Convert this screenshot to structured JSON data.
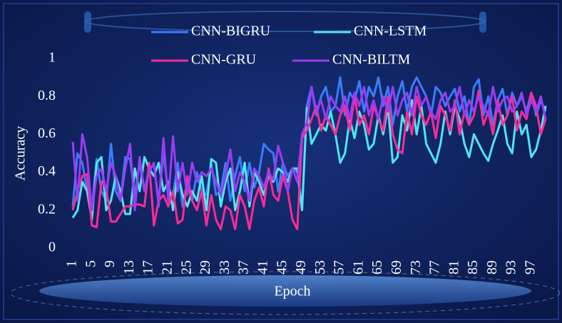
{
  "chart_data": {
    "type": "line",
    "y_label": "Accuracy",
    "x_label": "Epoch",
    "xlim": [
      1,
      100
    ],
    "ylim": [
      0,
      1
    ],
    "xticks": [
      1,
      5,
      9,
      13,
      17,
      21,
      25,
      29,
      33,
      37,
      41,
      45,
      49,
      53,
      57,
      61,
      65,
      69,
      73,
      77,
      81,
      85,
      89,
      93,
      97
    ],
    "yticks": [
      0,
      0.2,
      0.4,
      0.6,
      0.8,
      1
    ],
    "x": [
      1,
      2,
      3,
      4,
      5,
      6,
      7,
      8,
      9,
      10,
      11,
      12,
      13,
      14,
      15,
      16,
      17,
      18,
      19,
      20,
      21,
      22,
      23,
      24,
      25,
      26,
      27,
      28,
      29,
      30,
      31,
      32,
      33,
      34,
      35,
      36,
      37,
      38,
      39,
      40,
      41,
      42,
      43,
      44,
      45,
      46,
      47,
      48,
      49,
      50,
      51,
      52,
      53,
      54,
      55,
      56,
      57,
      58,
      59,
      60,
      61,
      62,
      63,
      64,
      65,
      66,
      67,
      68,
      69,
      70,
      71,
      72,
      73,
      74,
      75,
      76,
      77,
      78,
      79,
      80,
      81,
      82,
      83,
      84,
      85,
      86,
      87,
      88,
      89,
      90,
      91,
      92,
      93,
      94,
      95,
      96,
      97,
      98,
      99,
      100
    ],
    "series": [
      {
        "name": "CNN-BIGRU",
        "color": "#3a7cff",
        "values": [
          0.22,
          0.5,
          0.45,
          0.3,
          0.2,
          0.47,
          0.3,
          0.25,
          0.55,
          0.3,
          0.25,
          0.48,
          0.47,
          0.28,
          0.45,
          0.3,
          0.42,
          0.44,
          0.25,
          0.5,
          0.3,
          0.28,
          0.45,
          0.22,
          0.35,
          0.25,
          0.4,
          0.3,
          0.28,
          0.45,
          0.28,
          0.3,
          0.45,
          0.25,
          0.38,
          0.48,
          0.3,
          0.45,
          0.32,
          0.4,
          0.55,
          0.52,
          0.5,
          0.3,
          0.45,
          0.38,
          0.42,
          0.4,
          0.2,
          0.75,
          0.85,
          0.7,
          0.8,
          0.85,
          0.72,
          0.75,
          0.9,
          0.7,
          0.82,
          0.78,
          0.88,
          0.72,
          0.85,
          0.8,
          0.9,
          0.75,
          0.85,
          0.65,
          0.8,
          0.88,
          0.72,
          0.85,
          0.9,
          0.85,
          0.8,
          0.7,
          0.85,
          0.82,
          0.75,
          0.8,
          0.84,
          0.72,
          0.8,
          0.65,
          0.85,
          0.89,
          0.7,
          0.8,
          0.65,
          0.78,
          0.84,
          0.7,
          0.82,
          0.75,
          0.8,
          0.72,
          0.82,
          0.7,
          0.78,
          0.72
        ]
      },
      {
        "name": "CNN-LSTM",
        "color": "#4fe6f2",
        "values": [
          0.16,
          0.2,
          0.35,
          0.3,
          0.15,
          0.45,
          0.48,
          0.2,
          0.25,
          0.38,
          0.3,
          0.18,
          0.18,
          0.42,
          0.3,
          0.48,
          0.42,
          0.38,
          0.45,
          0.3,
          0.35,
          0.2,
          0.4,
          0.28,
          0.22,
          0.3,
          0.25,
          0.38,
          0.2,
          0.47,
          0.45,
          0.22,
          0.35,
          0.42,
          0.2,
          0.3,
          0.45,
          0.22,
          0.4,
          0.35,
          0.28,
          0.38,
          0.35,
          0.42,
          0.4,
          0.35,
          0.42,
          0.42,
          0.2,
          0.74,
          0.55,
          0.6,
          0.65,
          0.62,
          0.72,
          0.6,
          0.45,
          0.5,
          0.68,
          0.58,
          0.72,
          0.65,
          0.52,
          0.55,
          0.7,
          0.6,
          0.75,
          0.45,
          0.48,
          0.7,
          0.62,
          0.78,
          0.6,
          0.75,
          0.55,
          0.5,
          0.45,
          0.55,
          0.72,
          0.6,
          0.75,
          0.68,
          0.55,
          0.48,
          0.6,
          0.55,
          0.5,
          0.46,
          0.55,
          0.62,
          0.7,
          0.55,
          0.5,
          0.72,
          0.6,
          0.65,
          0.48,
          0.52,
          0.62,
          0.75
        ]
      },
      {
        "name": "CNN-GRU",
        "color": "#ff2a98",
        "values": [
          0.2,
          0.3,
          0.38,
          0.39,
          0.12,
          0.11,
          0.35,
          0.32,
          0.14,
          0.14,
          0.18,
          0.22,
          0.22,
          0.23,
          0.23,
          0.22,
          0.45,
          0.12,
          0.25,
          0.28,
          0.22,
          0.3,
          0.13,
          0.15,
          0.38,
          0.25,
          0.2,
          0.3,
          0.12,
          0.28,
          0.15,
          0.1,
          0.22,
          0.2,
          0.1,
          0.28,
          0.22,
          0.1,
          0.25,
          0.32,
          0.22,
          0.42,
          0.28,
          0.25,
          0.38,
          0.3,
          0.15,
          0.1,
          0.58,
          0.62,
          0.68,
          0.75,
          0.62,
          0.7,
          0.65,
          0.6,
          0.7,
          0.75,
          0.62,
          0.8,
          0.65,
          0.7,
          0.6,
          0.75,
          0.68,
          0.62,
          0.8,
          0.6,
          0.52,
          0.5,
          0.72,
          0.6,
          0.8,
          0.7,
          0.65,
          0.72,
          0.58,
          0.75,
          0.7,
          0.62,
          0.78,
          0.6,
          0.72,
          0.65,
          0.7,
          0.83,
          0.65,
          0.72,
          0.6,
          0.78,
          0.65,
          0.7,
          0.8,
          0.62,
          0.72,
          0.68,
          0.82,
          0.75,
          0.6,
          0.68
        ]
      },
      {
        "name": "CNN-BILTM",
        "color": "#9a3cf3",
        "values": [
          0.56,
          0.25,
          0.6,
          0.48,
          0.2,
          0.38,
          0.42,
          0.3,
          0.45,
          0.38,
          0.25,
          0.42,
          0.55,
          0.2,
          0.48,
          0.3,
          0.4,
          0.45,
          0.22,
          0.58,
          0.25,
          0.59,
          0.3,
          0.45,
          0.28,
          0.45,
          0.35,
          0.4,
          0.38,
          0.42,
          0.35,
          0.28,
          0.38,
          0.52,
          0.3,
          0.4,
          0.35,
          0.25,
          0.42,
          0.38,
          0.32,
          0.4,
          0.36,
          0.54,
          0.45,
          0.3,
          0.42,
          0.35,
          0.6,
          0.66,
          0.85,
          0.72,
          0.78,
          0.68,
          0.8,
          0.75,
          0.72,
          0.8,
          0.68,
          0.82,
          0.75,
          0.85,
          0.7,
          0.78,
          0.68,
          0.8,
          0.72,
          0.85,
          0.7,
          0.78,
          0.82,
          0.7,
          0.85,
          0.75,
          0.8,
          0.72,
          0.68,
          0.78,
          0.82,
          0.72,
          0.75,
          0.85,
          0.7,
          0.78,
          0.72,
          0.8,
          0.75,
          0.7,
          0.85,
          0.72,
          0.78,
          0.8,
          0.72,
          0.75,
          0.82,
          0.7,
          0.78,
          0.72,
          0.8,
          0.68
        ]
      }
    ]
  }
}
